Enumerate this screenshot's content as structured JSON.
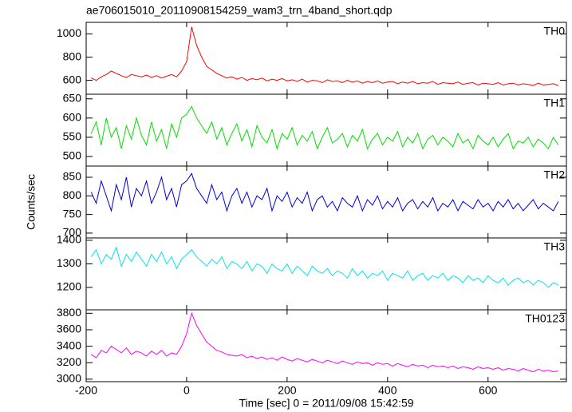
{
  "chart_data": {
    "type": "line",
    "title": "ae706015010_20110908154259_wam3_trn_4band_short.qdp",
    "x_label": "Time [sec] 0 = 2011/09/08 15:42:59",
    "y_label": "Counts/sec",
    "xlim": [
      -200,
      756
    ],
    "xticks": [
      -200,
      0,
      200,
      400,
      600
    ],
    "x": [
      -190,
      -180,
      -170,
      -160,
      -150,
      -140,
      -130,
      -120,
      -110,
      -100,
      -90,
      -80,
      -70,
      -60,
      -50,
      -40,
      -30,
      -20,
      -10,
      0,
      10,
      20,
      30,
      40,
      50,
      60,
      70,
      80,
      90,
      100,
      110,
      120,
      130,
      140,
      150,
      160,
      170,
      180,
      190,
      200,
      210,
      220,
      230,
      240,
      250,
      260,
      270,
      280,
      290,
      300,
      310,
      320,
      330,
      340,
      350,
      360,
      370,
      380,
      390,
      400,
      410,
      420,
      430,
      440,
      450,
      460,
      470,
      480,
      490,
      500,
      510,
      520,
      530,
      540,
      550,
      560,
      570,
      580,
      590,
      600,
      610,
      620,
      630,
      640,
      650,
      660,
      670,
      680,
      690,
      700,
      710,
      720,
      730,
      740
    ],
    "series": [
      {
        "name": "TH0",
        "color": "#ff0000",
        "ylim": [
          480,
          1100
        ],
        "yticks": [
          600,
          800,
          1000
        ],
        "values": [
          620,
          600,
          630,
          650,
          680,
          660,
          640,
          625,
          650,
          640,
          630,
          645,
          625,
          640,
          620,
          635,
          650,
          630,
          680,
          760,
          1060,
          900,
          800,
          720,
          690,
          660,
          640,
          620,
          630,
          610,
          625,
          600,
          615,
          605,
          620,
          595,
          610,
          600,
          615,
          595,
          605,
          590,
          610,
          585,
          600,
          595,
          580,
          605,
          590,
          595,
          580,
          600,
          585,
          595,
          575,
          590,
          580,
          595,
          575,
          585,
          590,
          570,
          585,
          575,
          590,
          570,
          580,
          575,
          590,
          565,
          580,
          575,
          570,
          585,
          565,
          575,
          580,
          560,
          575,
          570,
          565,
          580,
          560,
          570,
          575,
          560,
          570,
          565,
          555,
          575,
          560,
          565,
          570,
          555
        ]
      },
      {
        "name": "TH1",
        "color": "#00e000",
        "ylim": [
          475,
          662
        ],
        "yticks": [
          500,
          550,
          600,
          650
        ],
        "values": [
          560,
          590,
          530,
          600,
          550,
          575,
          520,
          580,
          545,
          600,
          555,
          530,
          590,
          540,
          570,
          520,
          585,
          550,
          600,
          610,
          630,
          600,
          580,
          560,
          590,
          545,
          575,
          530,
          560,
          585,
          540,
          570,
          525,
          580,
          550,
          535,
          570,
          520,
          560,
          545,
          575,
          530,
          555,
          540,
          565,
          520,
          550,
          575,
          535,
          545,
          560,
          525,
          555,
          540,
          570,
          520,
          545,
          560,
          530,
          550,
          540,
          565,
          525,
          550,
          535,
          560,
          520,
          545,
          555,
          530,
          550,
          540,
          525,
          560,
          535,
          545,
          520,
          555,
          540,
          530,
          550,
          525,
          545,
          560,
          520,
          540,
          535,
          550,
          525,
          545,
          535,
          520,
          550,
          530
        ]
      },
      {
        "name": "TH2",
        "color": "#0000dd",
        "ylim": [
          687,
          880
        ],
        "yticks": [
          700,
          750,
          800,
          850
        ],
        "values": [
          810,
          780,
          840,
          800,
          760,
          830,
          790,
          850,
          770,
          820,
          800,
          840,
          780,
          810,
          850,
          790,
          820,
          770,
          830,
          840,
          860,
          820,
          800,
          780,
          830,
          790,
          810,
          760,
          800,
          820,
          780,
          810,
          770,
          800,
          790,
          820,
          760,
          800,
          785,
          810,
          770,
          795,
          780,
          810,
          760,
          790,
          800,
          770,
          785,
          760,
          795,
          780,
          770,
          800,
          760,
          790,
          775,
          800,
          765,
          785,
          770,
          795,
          760,
          780,
          790,
          765,
          785,
          770,
          795,
          760,
          780,
          770,
          790,
          760,
          785,
          775,
          765,
          790,
          770,
          780,
          760,
          785,
          770,
          790,
          765,
          780,
          760,
          775,
          790,
          765,
          780,
          770,
          760,
          785
        ]
      },
      {
        "name": "TH3",
        "color": "#00e5ee",
        "ylim": [
          1105,
          1410
        ],
        "yticks": [
          1200,
          1300,
          1400
        ],
        "values": [
          1330,
          1360,
          1300,
          1340,
          1320,
          1370,
          1290,
          1340,
          1310,
          1350,
          1320,
          1290,
          1340,
          1310,
          1350,
          1300,
          1330,
          1280,
          1320,
          1340,
          1360,
          1330,
          1310,
          1290,
          1320,
          1300,
          1330,
          1280,
          1310,
          1300,
          1280,
          1310,
          1270,
          1300,
          1290,
          1260,
          1300,
          1280,
          1270,
          1300,
          1260,
          1290,
          1270,
          1250,
          1290,
          1270,
          1260,
          1280,
          1250,
          1270,
          1260,
          1240,
          1280,
          1250,
          1270,
          1240,
          1260,
          1250,
          1270,
          1230,
          1260,
          1250,
          1240,
          1270,
          1230,
          1250,
          1260,
          1230,
          1250,
          1240,
          1260,
          1230,
          1250,
          1240,
          1220,
          1250,
          1230,
          1240,
          1220,
          1250,
          1230,
          1220,
          1240,
          1210,
          1230,
          1240,
          1220,
          1230,
          1210,
          1230,
          1220,
          1200,
          1220,
          1210
        ]
      },
      {
        "name": "TH0123",
        "color": "#ff00ff",
        "ylim": [
          2970,
          3842
        ],
        "yticks": [
          3000,
          3200,
          3400,
          3600,
          3800
        ],
        "values": [
          3300,
          3260,
          3350,
          3320,
          3400,
          3360,
          3320,
          3380,
          3300,
          3340,
          3320,
          3280,
          3340,
          3300,
          3350,
          3280,
          3320,
          3300,
          3400,
          3550,
          3800,
          3650,
          3550,
          3450,
          3400,
          3350,
          3330,
          3300,
          3290,
          3280,
          3300,
          3260,
          3280,
          3250,
          3270,
          3240,
          3260,
          3230,
          3270,
          3240,
          3220,
          3250,
          3230,
          3210,
          3240,
          3220,
          3200,
          3230,
          3210,
          3190,
          3220,
          3200,
          3180,
          3210,
          3190,
          3200,
          3170,
          3200,
          3180,
          3190,
          3160,
          3190,
          3170,
          3150,
          3180,
          3160,
          3170,
          3140,
          3170,
          3150,
          3160,
          3140,
          3160,
          3130,
          3150,
          3140,
          3120,
          3150,
          3130,
          3140,
          3120,
          3140,
          3110,
          3130,
          3120,
          3100,
          3130,
          3110,
          3090,
          3120,
          3100,
          3110,
          3090,
          3100
        ]
      }
    ]
  }
}
